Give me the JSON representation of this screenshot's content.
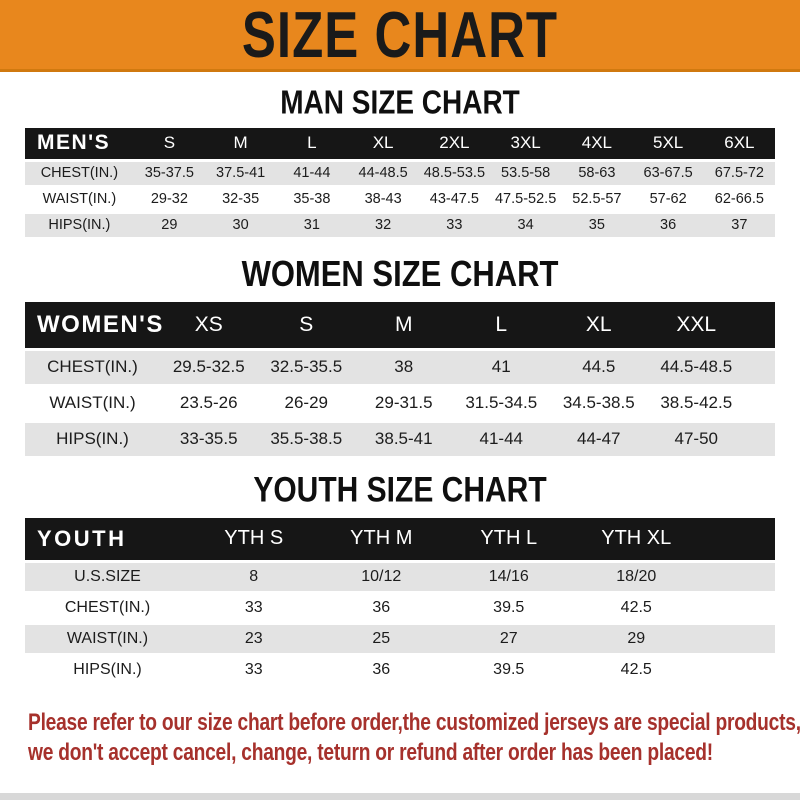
{
  "banner": {
    "title": "SIZE CHART"
  },
  "colors": {
    "banner_bg": "#E8871D",
    "banner_text": "#1A1A1A",
    "table_header_bg": "#161616",
    "table_header_text": "#FFFFFF",
    "row_shaded_bg": "#E3E3E3",
    "row_plain_bg": "#FFFFFF",
    "footer_text": "#A6312C"
  },
  "sections": [
    {
      "heading": "MAN SIZE CHART",
      "table": {
        "header_label": "MEN'S",
        "columns": [
          "S",
          "M",
          "L",
          "XL",
          "2XL",
          "3XL",
          "4XL",
          "5XL",
          "6XL"
        ],
        "rows": [
          {
            "label": "CHEST(IN.)",
            "values": [
              "35-37.5",
              "37.5-41",
              "41-44",
              "44-48.5",
              "48.5-53.5",
              "53.5-58",
              "58-63",
              "63-67.5",
              "67.5-72"
            ]
          },
          {
            "label": "WAIST(IN.)",
            "values": [
              "29-32",
              "32-35",
              "35-38",
              "38-43",
              "43-47.5",
              "47.5-52.5",
              "52.5-57",
              "57-62",
              "62-66.5"
            ]
          },
          {
            "label": "HIPS(IN.)",
            "values": [
              "29",
              "30",
              "31",
              "32",
              "33",
              "34",
              "35",
              "36",
              "37"
            ]
          }
        ]
      }
    },
    {
      "heading": "WOMEN SIZE CHART",
      "table": {
        "header_label": "WOMEN'S",
        "columns": [
          "XS",
          "S",
          "M",
          "L",
          "XL",
          "XXL"
        ],
        "rows": [
          {
            "label": "CHEST(IN.)",
            "values": [
              "29.5-32.5",
              "32.5-35.5",
              "38",
              "41",
              "44.5",
              "44.5-48.5"
            ]
          },
          {
            "label": "WAIST(IN.)",
            "values": [
              "23.5-26",
              "26-29",
              "29-31.5",
              "31.5-34.5",
              "34.5-38.5",
              "38.5-42.5"
            ]
          },
          {
            "label": "HIPS(IN.)",
            "values": [
              "33-35.5",
              "35.5-38.5",
              "38.5-41",
              "41-44",
              "44-47",
              "47-50"
            ]
          }
        ]
      }
    },
    {
      "heading": "YOUTH SIZE CHART",
      "table": {
        "header_label": "YOUTH",
        "columns": [
          "YTH S",
          "YTH M",
          "YTH L",
          "YTH XL"
        ],
        "rows": [
          {
            "label": "U.S.SIZE",
            "values": [
              "8",
              "10/12",
              "14/16",
              "18/20"
            ]
          },
          {
            "label": "CHEST(IN.)",
            "values": [
              "33",
              "36",
              "39.5",
              "42.5"
            ]
          },
          {
            "label": "WAIST(IN.)",
            "values": [
              "23",
              "25",
              "27",
              "29"
            ]
          },
          {
            "label": "HIPS(IN.)",
            "values": [
              "33",
              "36",
              "39.5",
              "42.5"
            ]
          }
        ]
      }
    }
  ],
  "footer": {
    "lines": [
      "Please refer to our size chart before order,the customized jerseys are special products,",
      "we don't accept cancel, change, teturn or refund after order has been placed!"
    ]
  }
}
